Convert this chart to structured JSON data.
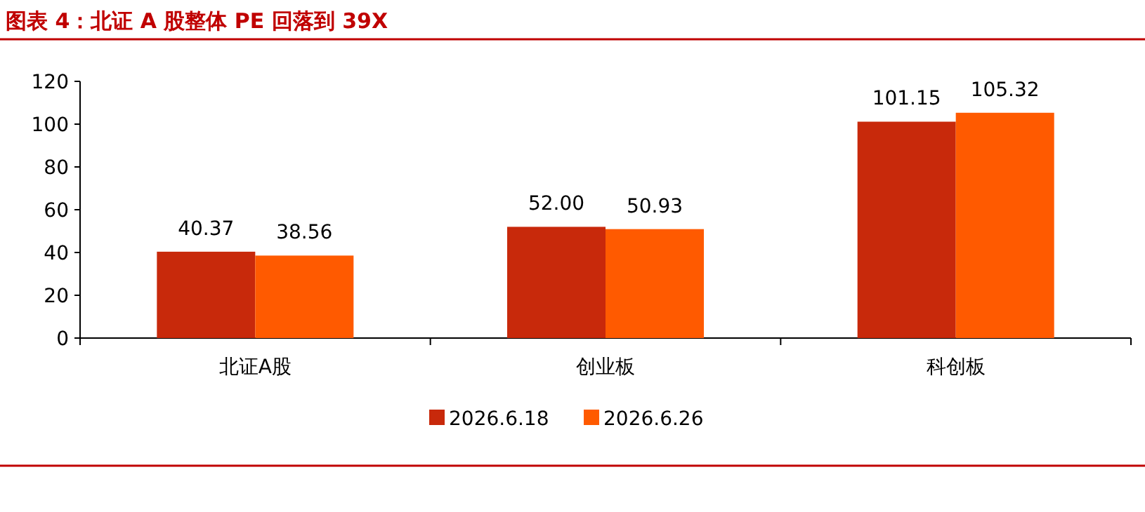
{
  "chart_data": {
    "type": "bar",
    "title": "图表 4：北证 A 股整体 PE 回落到 39X",
    "categories": [
      "北证A股",
      "创业板",
      "科创板"
    ],
    "series": [
      {
        "name": "2026.6.18",
        "color": "#c8290b",
        "values": [
          40.37,
          52.0,
          101.15
        ],
        "value_labels": [
          "40.37",
          "52.00",
          "101.15"
        ]
      },
      {
        "name": "2026.6.26",
        "color": "#ff5a00",
        "values": [
          38.56,
          50.93,
          105.32
        ],
        "value_labels": [
          "38.56",
          "50.93",
          "105.32"
        ]
      }
    ],
    "ylim": [
      0,
      120
    ],
    "yticks": [
      0,
      20,
      40,
      60,
      80,
      100,
      120
    ],
    "legend": "bottom",
    "grid": false
  }
}
